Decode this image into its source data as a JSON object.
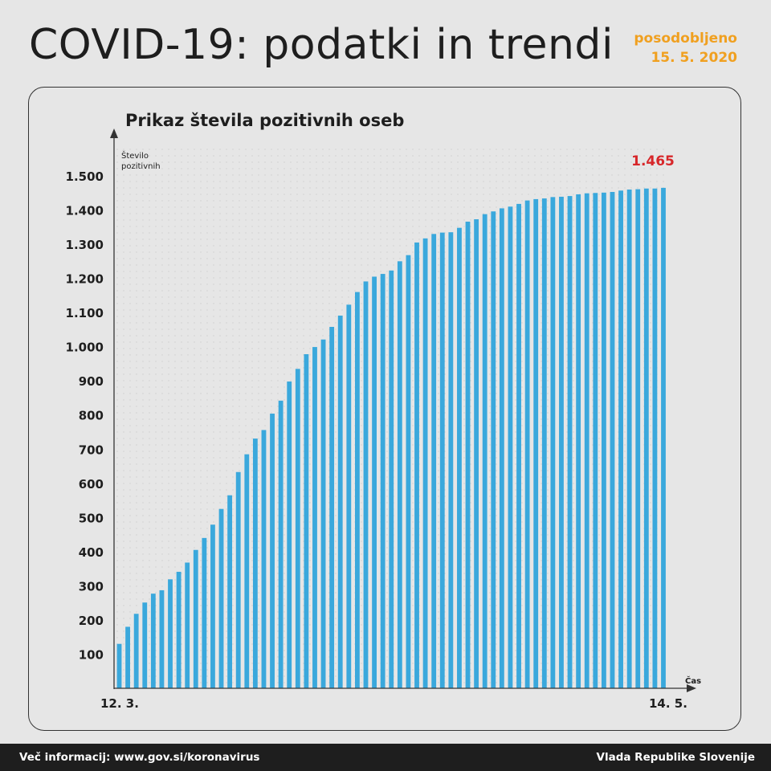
{
  "header": {
    "title": "COVID-19: podatki in trendi",
    "updated_label": "posodobljeno",
    "updated_date": "15. 5. 2020"
  },
  "footer": {
    "info": "Več informacij: www.gov.si/koronavirus",
    "source": "Vlada Republike Slovenije"
  },
  "colors": {
    "bar": "#3aa8dc",
    "highlight": "#d7272a",
    "accent": "#f0a020"
  },
  "chart_data": {
    "type": "bar",
    "title": "Prikaz števila pozitivnih oseb",
    "ylabel": "Število pozitivnih",
    "xlabel": "Čas",
    "first_x_label": "12. 3.",
    "last_x_label": "14. 5.",
    "last_value_label": "1.465",
    "ylim": [
      0,
      1500
    ],
    "yticks": [
      {
        "value": 100,
        "label": "100"
      },
      {
        "value": 200,
        "label": "200"
      },
      {
        "value": 300,
        "label": "300"
      },
      {
        "value": 400,
        "label": "400"
      },
      {
        "value": 500,
        "label": "500"
      },
      {
        "value": 600,
        "label": "600"
      },
      {
        "value": 700,
        "label": "700"
      },
      {
        "value": 800,
        "label": "800"
      },
      {
        "value": 900,
        "label": "900"
      },
      {
        "value": 1000,
        "label": "1.000"
      },
      {
        "value": 1100,
        "label": "1.100"
      },
      {
        "value": 1200,
        "label": "1.200"
      },
      {
        "value": 1300,
        "label": "1.300"
      },
      {
        "value": 1400,
        "label": "1.400"
      },
      {
        "value": 1500,
        "label": "1.500"
      }
    ],
    "values": [
      130,
      180,
      218,
      251,
      277,
      287,
      319,
      341,
      368,
      405,
      440,
      479,
      525,
      565,
      633,
      685,
      731,
      756,
      804,
      842,
      898,
      935,
      978,
      999,
      1021,
      1058,
      1091,
      1123,
      1160,
      1191,
      1205,
      1213,
      1223,
      1250,
      1268,
      1305,
      1317,
      1330,
      1334,
      1335,
      1348,
      1366,
      1373,
      1388,
      1396,
      1405,
      1410,
      1418,
      1428,
      1432,
      1434,
      1438,
      1439,
      1441,
      1446,
      1449,
      1450,
      1451,
      1453,
      1457,
      1460,
      1461,
      1463,
      1463,
      1465
    ]
  }
}
